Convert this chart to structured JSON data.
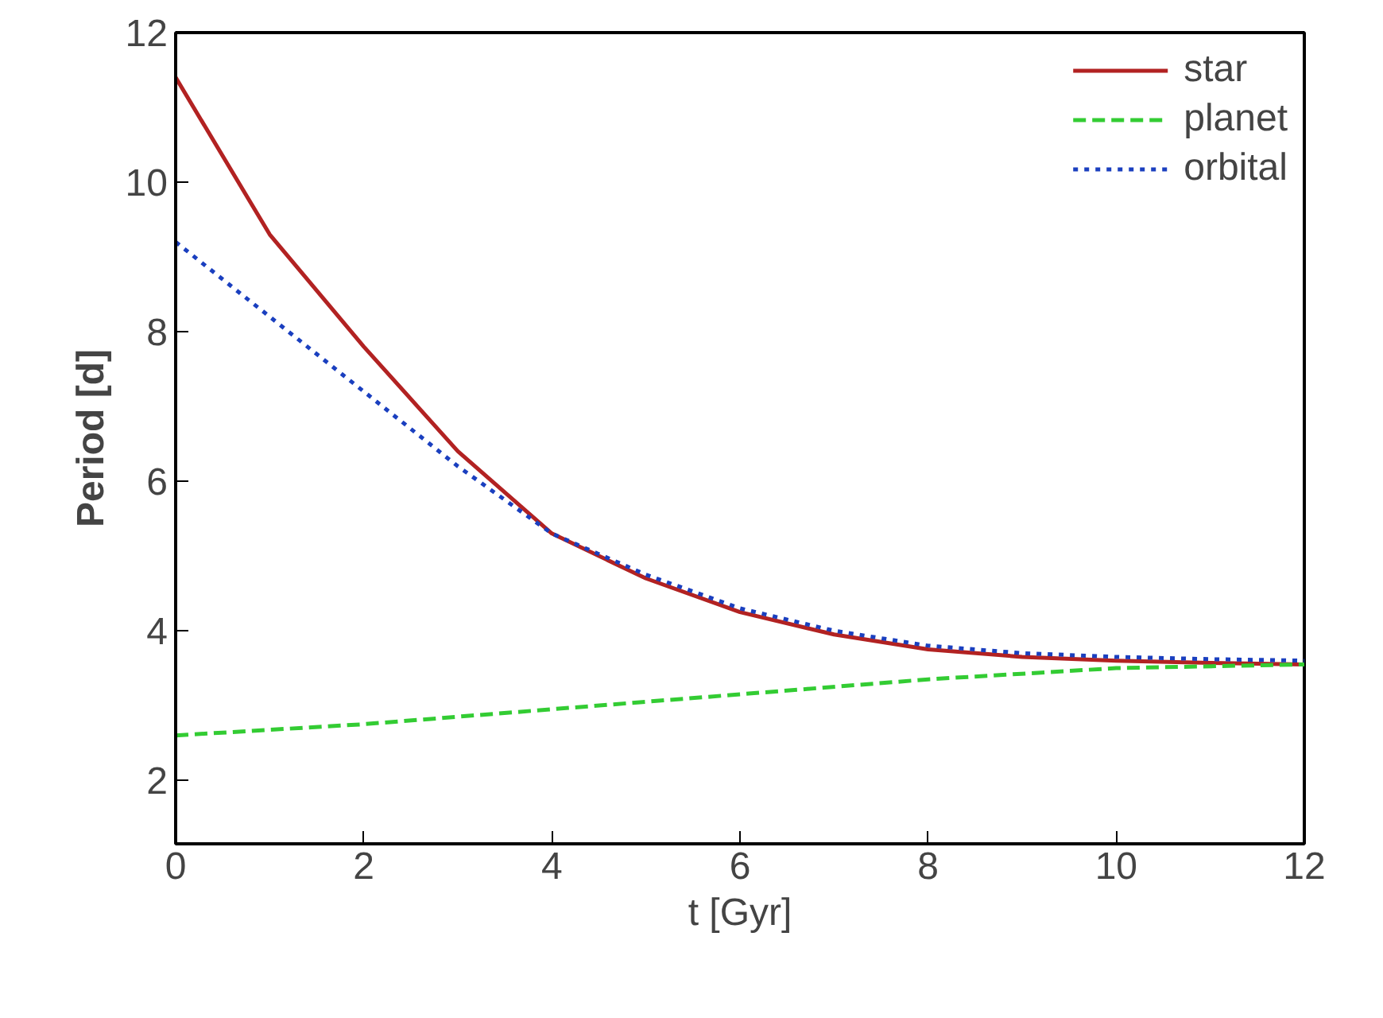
{
  "chart_data": {
    "type": "line",
    "xlabel": "t [Gyr]",
    "ylabel": "Period [d]",
    "xlim": [
      0,
      12
    ],
    "ylim": [
      1.15,
      12
    ],
    "xticks": [
      0,
      2,
      4,
      6,
      8,
      10,
      12
    ],
    "yticks": [
      2,
      4,
      6,
      8,
      10,
      12
    ],
    "grid": false,
    "legend": "top right",
    "marker": "none",
    "series": [
      {
        "name": "star",
        "color": "#b22222",
        "line_style": "solid",
        "x": [
          0,
          1,
          2,
          3,
          4,
          5,
          6,
          7,
          8,
          9,
          10,
          11,
          12
        ],
        "values": [
          11.4,
          9.3,
          7.8,
          6.4,
          5.3,
          4.7,
          4.25,
          3.95,
          3.75,
          3.65,
          3.6,
          3.57,
          3.55
        ]
      },
      {
        "name": "planet",
        "color": "#33cc33",
        "line_style": "dashed",
        "x": [
          0,
          2,
          4,
          6,
          8,
          10,
          12
        ],
        "values": [
          2.6,
          2.75,
          2.95,
          3.15,
          3.35,
          3.5,
          3.55
        ]
      },
      {
        "name": "orbital",
        "color": "#1a3fbf",
        "line_style": "dotted",
        "x": [
          0,
          1,
          2,
          3,
          4,
          5,
          6,
          7,
          8,
          9,
          10,
          11,
          12
        ],
        "values": [
          9.2,
          8.2,
          7.2,
          6.2,
          5.3,
          4.75,
          4.3,
          4.0,
          3.8,
          3.7,
          3.65,
          3.62,
          3.6
        ]
      }
    ]
  }
}
